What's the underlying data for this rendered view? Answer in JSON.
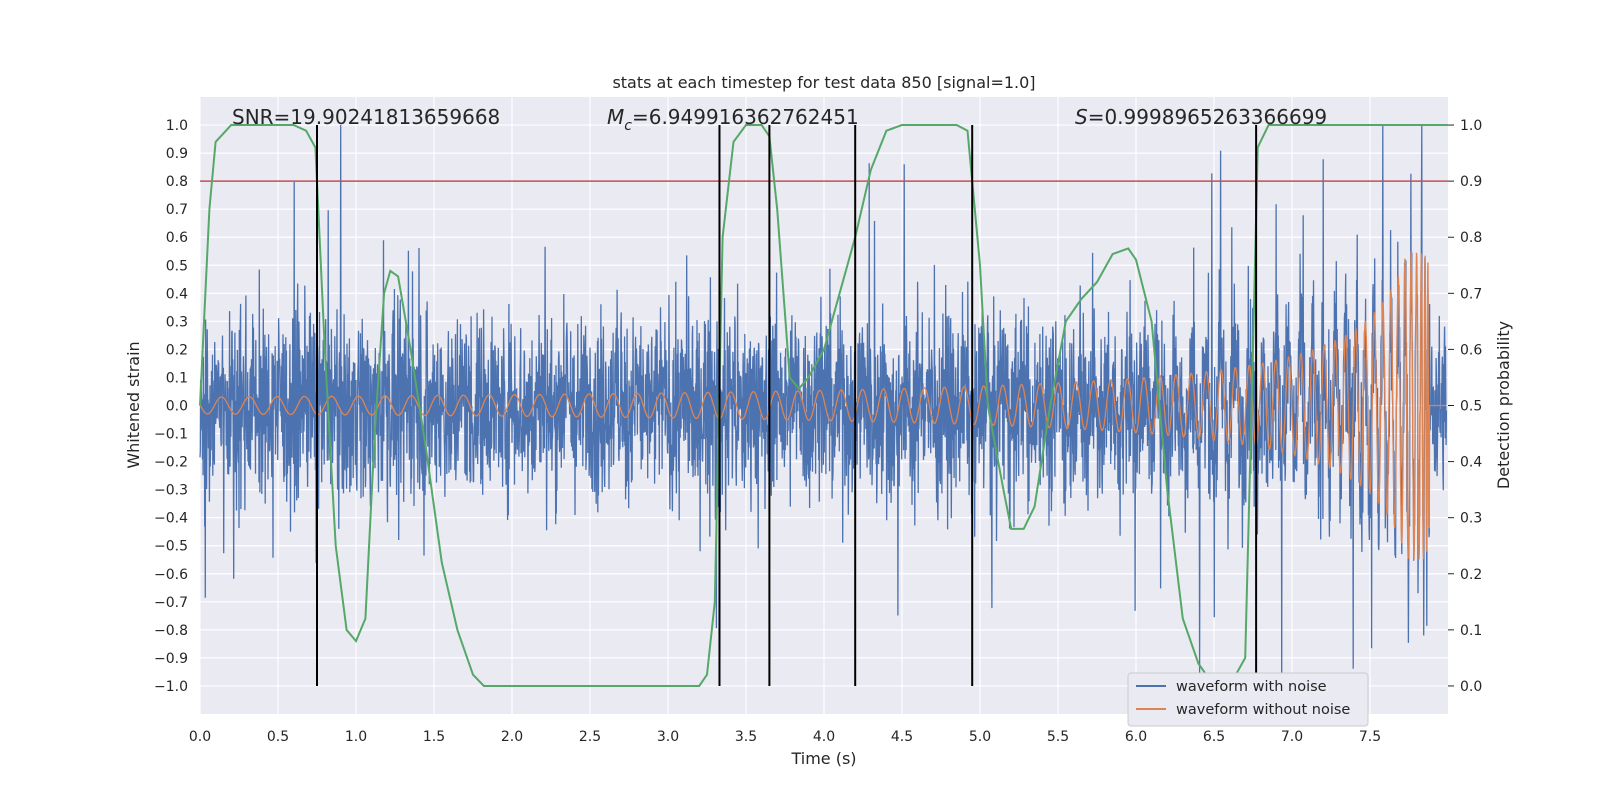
{
  "chart_data": {
    "type": "line",
    "title": "stats at each timestep for test data 850 [signal=1.0]",
    "xlabel": "Time (s)",
    "ylabel_left": "Whitened strain",
    "ylabel_right": "Detection probability",
    "xlim": [
      0.0,
      8.0
    ],
    "ylim_left": [
      -1.1,
      1.1
    ],
    "ylim_right": [
      -0.05,
      1.05
    ],
    "x_ticks": [
      0.0,
      0.5,
      1.0,
      1.5,
      2.0,
      2.5,
      3.0,
      3.5,
      4.0,
      4.5,
      5.0,
      5.5,
      6.0,
      6.5,
      7.0,
      7.5
    ],
    "y_ticks_left": [
      1.0,
      0.9,
      0.8,
      0.7,
      0.6,
      0.5,
      0.4,
      0.3,
      0.2,
      0.1,
      0.0,
      -0.1,
      -0.2,
      -0.3,
      -0.4,
      -0.5,
      -0.6,
      -0.7,
      -0.8,
      -0.9,
      -1.0
    ],
    "y_ticks_right": [
      1.0,
      0.9,
      0.8,
      0.7,
      0.6,
      0.5,
      0.4,
      0.3,
      0.2,
      0.1,
      0.0
    ],
    "grid": true,
    "legend_position": "lower right",
    "annotations": {
      "snr": "SNR=19.90241813659668",
      "mc_symbol": "M",
      "mc_sub": "c",
      "mc_value": "=6.949916362762451",
      "s_symbol": "S",
      "s_value": "=0.9998965263366699"
    },
    "series": [
      {
        "name": "waveform with noise",
        "color": "#4c72b0",
        "axis": "left",
        "style": "dense noisy oscillation, envelope about ±0.45 with peaks to about ±1.0"
      },
      {
        "name": "waveform without noise",
        "color": "#dd8452",
        "axis": "left",
        "style": "chirp: amplitude grows from 0.03 to about 0.52 at merger near t=7.87 s"
      }
    ],
    "detection_probability": {
      "color": "#55a868",
      "axis": "right",
      "x": [
        0.0,
        0.06,
        0.1,
        0.2,
        0.3,
        0.4,
        0.5,
        0.6,
        0.68,
        0.74,
        0.8,
        0.87,
        0.94,
        1.0,
        1.06,
        1.12,
        1.18,
        1.22,
        1.27,
        1.35,
        1.45,
        1.55,
        1.65,
        1.75,
        1.82,
        1.9,
        2.0,
        2.5,
        3.0,
        3.2,
        3.25,
        3.3,
        3.35,
        3.42,
        3.5,
        3.6,
        3.65,
        3.7,
        3.78,
        3.84,
        3.9,
        4.0,
        4.1,
        4.2,
        4.3,
        4.4,
        4.5,
        4.7,
        4.85,
        4.92,
        5.0,
        5.05,
        5.15,
        5.2,
        5.28,
        5.35,
        5.45,
        5.55,
        5.65,
        5.75,
        5.85,
        5.95,
        6.0,
        6.1,
        6.2,
        6.3,
        6.4,
        6.5,
        6.6,
        6.7,
        6.75,
        6.78,
        6.85,
        7.0,
        7.5,
        8.0
      ],
      "y": [
        0.5,
        0.85,
        0.97,
        1.0,
        1.0,
        1.0,
        1.0,
        1.0,
        0.99,
        0.96,
        0.6,
        0.25,
        0.1,
        0.08,
        0.12,
        0.45,
        0.7,
        0.74,
        0.73,
        0.6,
        0.42,
        0.22,
        0.1,
        0.02,
        0.0,
        0.0,
        0.0,
        0.0,
        0.0,
        0.0,
        0.02,
        0.15,
        0.8,
        0.97,
        1.0,
        1.0,
        0.98,
        0.85,
        0.55,
        0.53,
        0.55,
        0.6,
        0.7,
        0.8,
        0.92,
        0.99,
        1.0,
        1.0,
        1.0,
        0.99,
        0.75,
        0.5,
        0.35,
        0.28,
        0.28,
        0.32,
        0.5,
        0.65,
        0.69,
        0.72,
        0.77,
        0.78,
        0.76,
        0.65,
        0.35,
        0.12,
        0.04,
        0.0,
        0.0,
        0.05,
        0.6,
        0.96,
        1.0,
        1.0,
        1.0,
        1.0
      ]
    },
    "threshold_line": {
      "color": "#c44e52",
      "value": 0.9,
      "axis": "right"
    },
    "event_markers": {
      "color": "#000000",
      "x": [
        0.75,
        3.33,
        3.65,
        4.2,
        4.95,
        6.77
      ],
      "range_left": [
        -1.0,
        1.0
      ]
    }
  },
  "legend": {
    "item1": "waveform with noise",
    "item2": "waveform without noise"
  }
}
